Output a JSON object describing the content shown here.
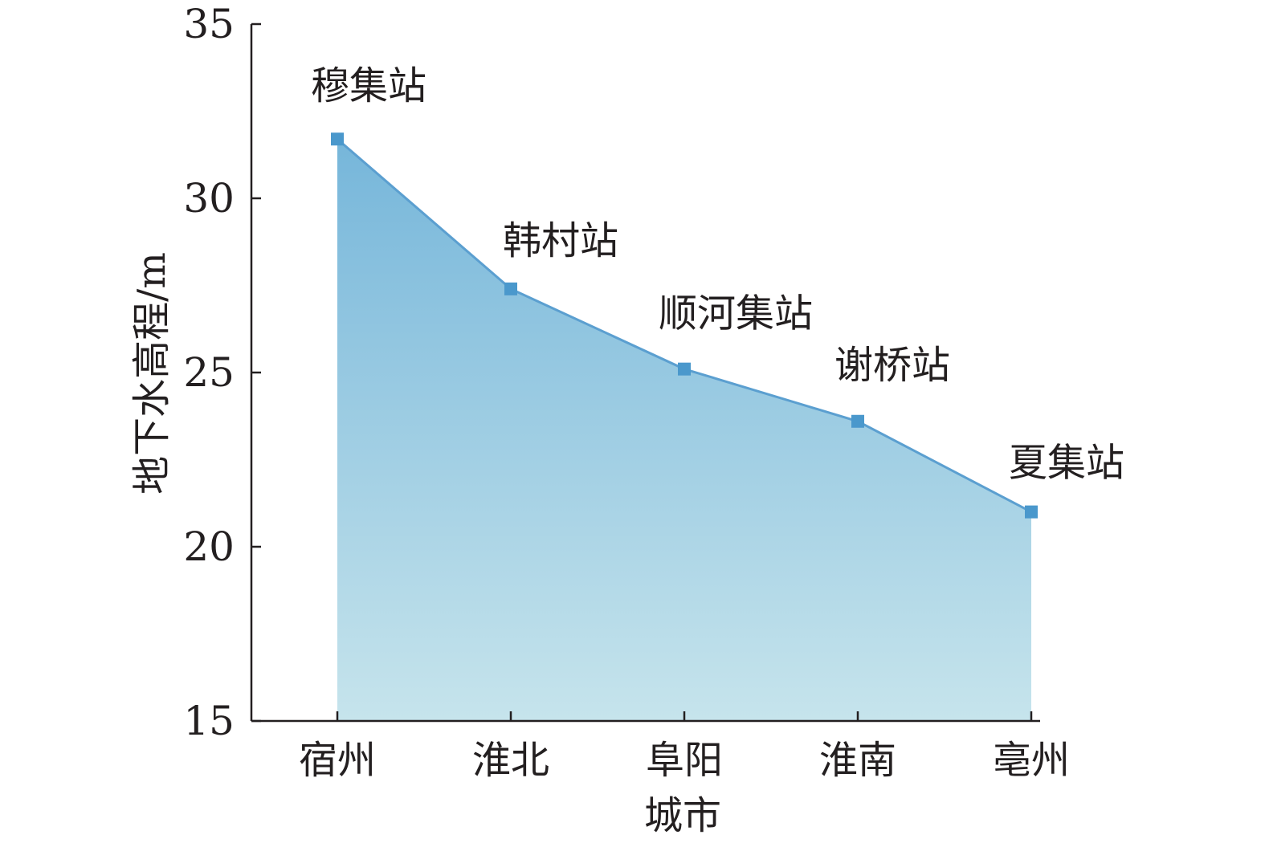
{
  "chart_data": {
    "type": "area",
    "categories": [
      "宿州",
      "淮北",
      "阜阳",
      "淮南",
      "亳州"
    ],
    "values": [
      31.7,
      27.4,
      25.1,
      23.6,
      21.0
    ],
    "point_labels": [
      "穆集站",
      "韩村站",
      "顺河集站",
      "谢桥站",
      "夏集站"
    ],
    "xlabel": "城市",
    "ylabel": "地下水高程/m",
    "ylim": [
      15,
      35
    ],
    "yticks": [
      "15",
      "20",
      "25",
      "30",
      "35"
    ],
    "grid": false,
    "legend": "none",
    "colors": {
      "fill_top": "#76b6da",
      "fill_bottom": "#c6e4ec",
      "line": "#5b9fd0",
      "marker": "#4a98cc",
      "axis": "#231f20"
    }
  }
}
